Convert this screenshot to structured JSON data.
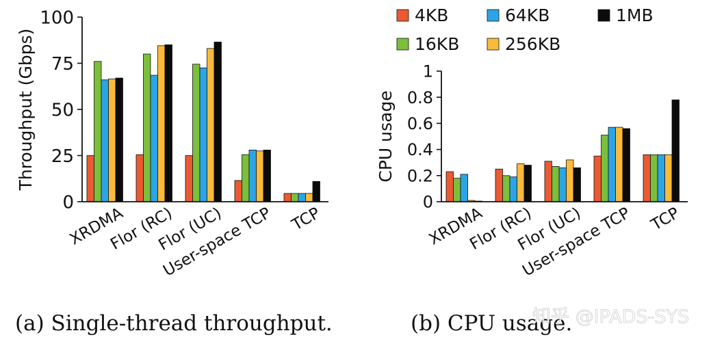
{
  "legend": [
    {
      "name": "4KB",
      "color": "#ea5a33"
    },
    {
      "name": "16KB",
      "color": "#7cbf3c"
    },
    {
      "name": "64KB",
      "color": "#2ba5e6"
    },
    {
      "name": "256KB",
      "color": "#fbbb3a"
    },
    {
      "name": "1MB",
      "color": "#0b0b0b"
    }
  ],
  "chart_data": [
    {
      "type": "bar",
      "caption": "(a) Single-thread throughput.",
      "ylabel": "Throughput (Gbps)",
      "ylim": [
        0,
        100
      ],
      "yticks": [
        "0",
        "25",
        "50",
        "75",
        "100"
      ],
      "categories": [
        "XRDMA",
        "Flor (RC)",
        "Flor (UC)",
        "User-space TCP",
        "TCP"
      ],
      "series": [
        {
          "name": "4KB",
          "values": [
            25,
            25.5,
            25,
            11.5,
            4.5
          ]
        },
        {
          "name": "16KB",
          "values": [
            76,
            80,
            74.5,
            25.5,
            4.5
          ]
        },
        {
          "name": "64KB",
          "values": [
            66,
            68.5,
            72.5,
            28,
            4.5
          ]
        },
        {
          "name": "256KB",
          "values": [
            66.5,
            84.5,
            83,
            27.5,
            4.5
          ]
        },
        {
          "name": "1MB",
          "values": [
            67,
            85,
            86.5,
            28,
            11
          ]
        }
      ]
    },
    {
      "type": "bar",
      "caption": "(b) CPU usage.",
      "ylabel": "CPU usage",
      "ylim": [
        0,
        1
      ],
      "yticks": [
        "0",
        "0.2",
        "0.4",
        "0.6",
        "0.8",
        "1"
      ],
      "categories": [
        "XRDMA",
        "Flor (RC)",
        "Flor (UC)",
        "User-space TCP",
        "TCP"
      ],
      "series": [
        {
          "name": "4KB",
          "values": [
            0.23,
            0.25,
            0.31,
            0.35,
            0.36
          ]
        },
        {
          "name": "16KB",
          "values": [
            0.18,
            0.2,
            0.27,
            0.51,
            0.36
          ]
        },
        {
          "name": "64KB",
          "values": [
            0.21,
            0.19,
            0.26,
            0.57,
            0.36
          ]
        },
        {
          "name": "256KB",
          "values": [
            0.01,
            0.29,
            0.32,
            0.57,
            0.36
          ]
        },
        {
          "name": "1MB",
          "values": [
            0.005,
            0.28,
            0.26,
            0.56,
            0.78
          ]
        }
      ]
    }
  ],
  "watermark": "知乎 @IPADS-SYS"
}
